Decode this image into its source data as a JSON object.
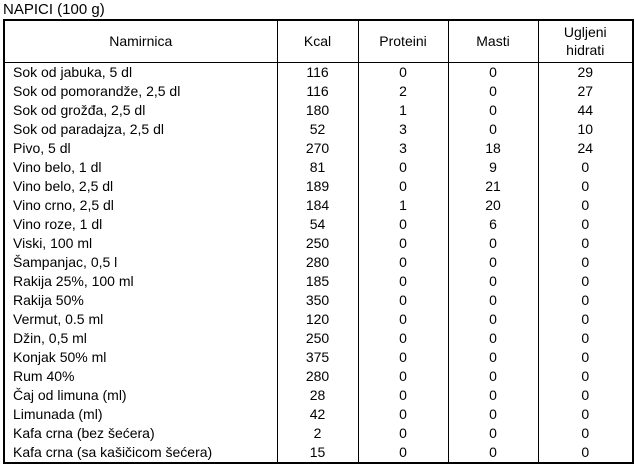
{
  "title": "NAPICI (100 g)",
  "table": {
    "columns": [
      "Namirnica",
      "Kcal",
      "Proteini",
      "Masti",
      "Ugljeni hidrati"
    ],
    "column_keys": [
      "namirnica",
      "kcal",
      "proteini",
      "masti",
      "ugljeni-hidrati"
    ],
    "rows": [
      [
        "Sok od jabuka, 5 dl",
        "116",
        "0",
        "0",
        "29"
      ],
      [
        "Sok od pomorandže, 2,5 dl",
        "116",
        "2",
        "0",
        "27"
      ],
      [
        "Sok od grožđa, 2,5 dl",
        "180",
        "1",
        "0",
        "44"
      ],
      [
        "Sok od paradajza, 2,5 dl",
        "52",
        "3",
        "0",
        "10"
      ],
      [
        "Pivo, 5 dl",
        "270",
        "3",
        "18",
        "24"
      ],
      [
        "Vino belo, 1 dl",
        "81",
        "0",
        "9",
        "0"
      ],
      [
        "Vino belo, 2,5 dl",
        "189",
        "0",
        "21",
        "0"
      ],
      [
        "Vino crno, 2,5 dl",
        "184",
        "1",
        "20",
        "0"
      ],
      [
        "Vino roze, 1 dl",
        "54",
        "0",
        "6",
        "0"
      ],
      [
        "Viski, 100 ml",
        "250",
        "0",
        "0",
        "0"
      ],
      [
        "Šampanjac, 0,5 l",
        "280",
        "0",
        "0",
        "0"
      ],
      [
        "Rakija 25%, 100 ml",
        "185",
        "0",
        "0",
        "0"
      ],
      [
        "Rakija 50%",
        "350",
        "0",
        "0",
        "0"
      ],
      [
        "Vermut, 0.5 ml",
        "120",
        "0",
        "0",
        "0"
      ],
      [
        "Džin, 0,5 ml",
        "250",
        "0",
        "0",
        "0"
      ],
      [
        "Konjak 50% ml",
        "375",
        "0",
        "0",
        "0"
      ],
      [
        "Rum 40%",
        "280",
        "0",
        "0",
        "0"
      ],
      [
        "Čaj od limuna (ml)",
        "28",
        "0",
        "0",
        "0"
      ],
      [
        "Limunada (ml)",
        "42",
        "0",
        "0",
        "0"
      ],
      [
        "Kafa crna (bez šećera)",
        "2",
        "0",
        "0",
        "0"
      ],
      [
        "Kafa crna (sa kašičicom šećera)",
        "15",
        "0",
        "0",
        "0"
      ]
    ]
  }
}
